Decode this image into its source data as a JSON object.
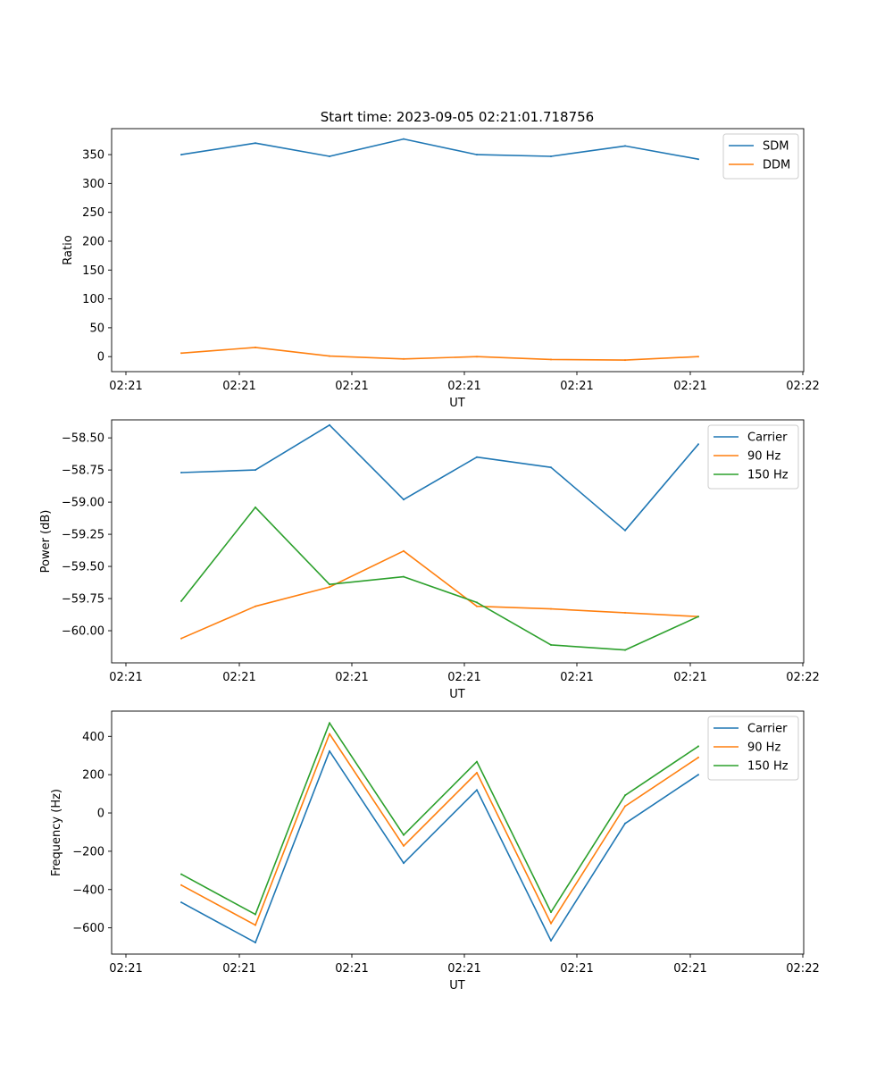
{
  "figure_title": "Start time: 2023-09-05 02:21:01.718756",
  "chart_data": [
    {
      "type": "line",
      "xlabel": "UT",
      "ylabel": "Ratio",
      "x_ticks": [
        "02:21",
        "02:21",
        "02:21",
        "02:21",
        "02:21",
        "02:21",
        "02:22"
      ],
      "y_ticks": [
        0,
        50,
        100,
        150,
        200,
        250,
        300,
        350
      ],
      "ylim": [
        -26,
        395
      ],
      "legend_position": "top-right",
      "grid": false,
      "series": [
        {
          "name": "SDM",
          "color": "#1f77b4",
          "values": [
            350,
            370,
            347,
            377,
            350,
            347,
            365,
            342
          ]
        },
        {
          "name": "DDM",
          "color": "#ff7f0e",
          "values": [
            6,
            16,
            1,
            -4,
            0,
            -5,
            -6,
            0
          ]
        }
      ]
    },
    {
      "type": "line",
      "xlabel": "UT",
      "ylabel": "Power (dB)",
      "x_ticks": [
        "02:21",
        "02:21",
        "02:21",
        "02:21",
        "02:21",
        "02:21",
        "02:22"
      ],
      "y_ticks": [
        "−60.00",
        "−59.75",
        "−59.50",
        "−59.25",
        "−59.00",
        "−58.75",
        "−58.50"
      ],
      "ylim": [
        -60.25,
        -58.36
      ],
      "legend_position": "top-right",
      "grid": false,
      "series": [
        {
          "name": "Carrier",
          "color": "#1f77b4",
          "values": [
            -58.77,
            -58.75,
            -58.4,
            -58.98,
            -58.65,
            -58.73,
            -59.22,
            -58.55
          ]
        },
        {
          "name": "90 Hz",
          "color": "#ff7f0e",
          "values": [
            -60.06,
            -59.81,
            -59.66,
            -59.38,
            -59.81,
            -59.83,
            -59.86,
            -59.89
          ]
        },
        {
          "name": "150 Hz",
          "color": "#2ca02c",
          "values": [
            -59.77,
            -59.04,
            -59.64,
            -59.58,
            -59.78,
            -60.11,
            -60.15,
            -59.89
          ]
        }
      ]
    },
    {
      "type": "line",
      "xlabel": "UT",
      "ylabel": "Frequency (Hz)",
      "x_ticks": [
        "02:21",
        "02:21",
        "02:21",
        "02:21",
        "02:21",
        "02:21",
        "02:22"
      ],
      "y_ticks": [
        "−600",
        "−400",
        "−200",
        "0",
        "200",
        "400"
      ],
      "ylim": [
        -737,
        532
      ],
      "legend_position": "top-right",
      "grid": false,
      "series": [
        {
          "name": "Carrier",
          "color": "#1f77b4",
          "values": [
            -467,
            -677,
            323,
            -262,
            120,
            -667,
            -55,
            200
          ]
        },
        {
          "name": "90 Hz",
          "color": "#ff7f0e",
          "values": [
            -377,
            -586,
            413,
            -172,
            210,
            -577,
            35,
            290
          ]
        },
        {
          "name": "150 Hz",
          "color": "#2ca02c",
          "values": [
            -320,
            -530,
            470,
            -115,
            268,
            -518,
            92,
            348
          ]
        }
      ]
    }
  ]
}
